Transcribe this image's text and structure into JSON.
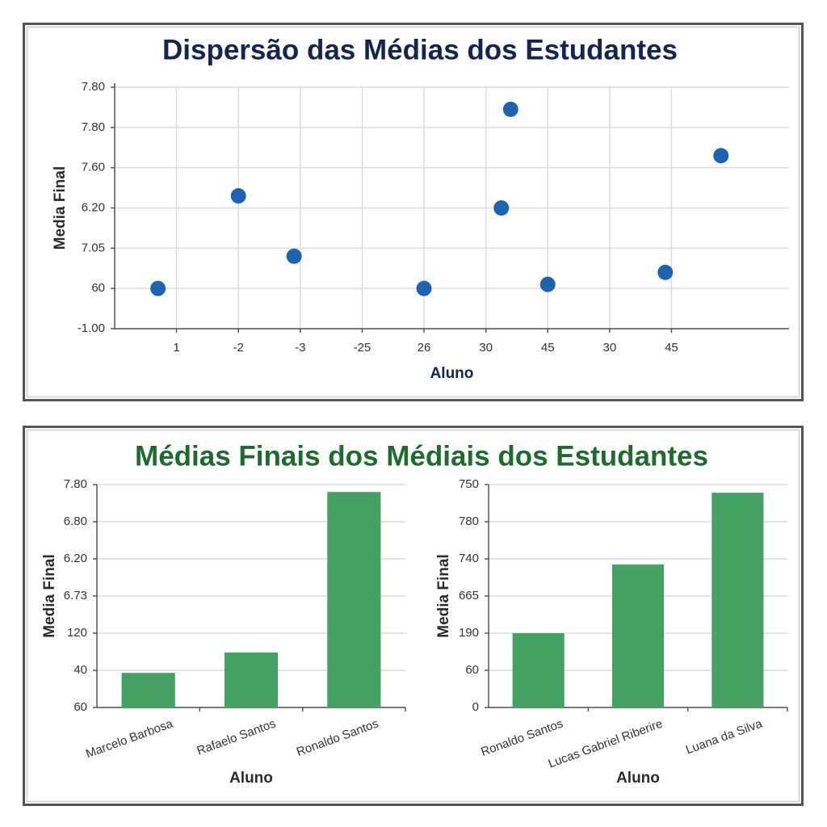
{
  "chart_data": [
    {
      "type": "scatter",
      "title": "Dispersão das Médias dos Estudantes",
      "x_label": "Aluno",
      "y_label": "Media Final",
      "color": "#1f63b0",
      "grid": true,
      "x": [
        0.7,
        2.0,
        2.9,
        5.0,
        6.25,
        6.4,
        7.0,
        8.9,
        9.8
      ],
      "values": [
        1.0,
        3.3,
        1.8,
        1.0,
        3.0,
        5.45,
        1.1,
        1.4,
        4.3
      ],
      "xlim": [
        0,
        10.9
      ],
      "ylim": [
        0,
        6
      ],
      "xticks": [
        {
          "value": 1,
          "label": "1"
        },
        {
          "value": 2,
          "label": "-2"
        },
        {
          "value": 3,
          "label": "-3"
        },
        {
          "value": 4,
          "label": "-25"
        },
        {
          "value": 5,
          "label": "26"
        },
        {
          "value": 6,
          "label": "30"
        },
        {
          "value": 7,
          "label": "45"
        },
        {
          "value": 8,
          "label": "30"
        },
        {
          "value": 9,
          "label": "45"
        }
      ],
      "yticks": [
        {
          "value": 0,
          "label": "-1.00"
        },
        {
          "value": 1,
          "label": "60"
        },
        {
          "value": 2,
          "label": "7.05"
        },
        {
          "value": 3,
          "label": "6.20"
        },
        {
          "value": 4,
          "label": "7.60"
        },
        {
          "value": 5,
          "label": "7.80"
        },
        {
          "value": 6,
          "label": "7.80"
        }
      ]
    },
    {
      "type": "bar",
      "title": "Médias Finais dos Médiais dos Estudantes",
      "x_label": "Aluno",
      "y_label": "Media Final",
      "color": "#45a164",
      "grid": true,
      "categories": [
        "Marcelo Barbosa",
        "Rafaelo Santos",
        "Ronaldo Santos"
      ],
      "values": [
        0.93,
        1.48,
        5.8
      ],
      "ylim": [
        0,
        6
      ],
      "yticks": [
        {
          "value": 0,
          "label": "60"
        },
        {
          "value": 1,
          "label": "40"
        },
        {
          "value": 2,
          "label": "120"
        },
        {
          "value": 3,
          "label": "6.73"
        },
        {
          "value": 4,
          "label": "6.20"
        },
        {
          "value": 5,
          "label": "6.80"
        },
        {
          "value": 6,
          "label": "7.80"
        }
      ]
    },
    {
      "type": "bar",
      "x_label": "Aluno",
      "y_label": "Media Final",
      "color": "#45a164",
      "grid": true,
      "categories": [
        "Ronaldo Santos",
        "Lucas Gabriel Riberire",
        "Luana da Silva"
      ],
      "values": [
        2.0,
        3.85,
        5.78
      ],
      "ylim": [
        0,
        6
      ],
      "yticks": [
        0,
        {
          "value": 1,
          "label": "60"
        },
        {
          "value": 2,
          "label": "190"
        },
        {
          "value": 3,
          "label": "665"
        },
        {
          "value": 4,
          "label": "740"
        },
        {
          "value": 5,
          "label": "780"
        },
        {
          "value": 6,
          "label": "750"
        }
      ]
    }
  ]
}
